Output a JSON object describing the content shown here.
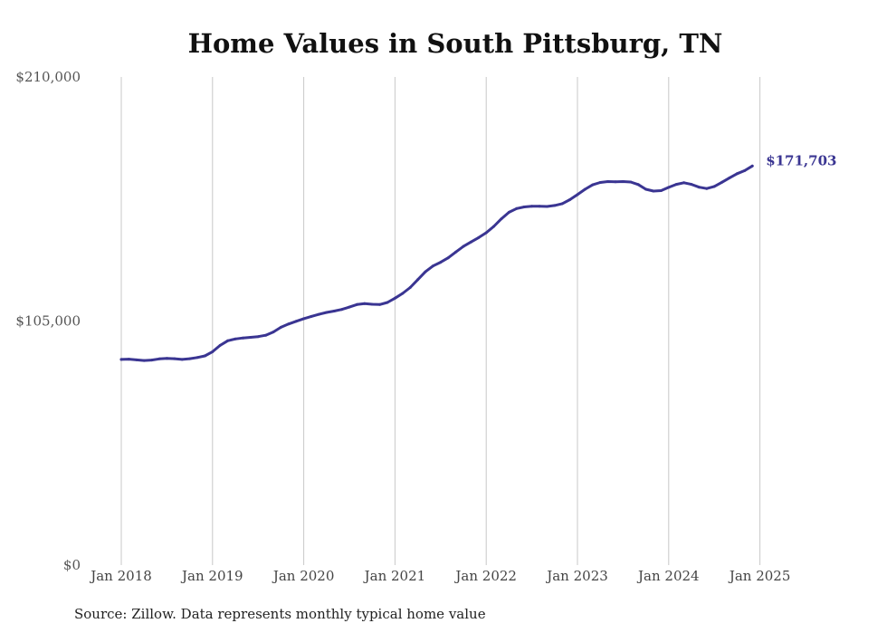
{
  "chart_data": {
    "type": "line",
    "title": "Home Values in South Pittsburg, TN",
    "xlabel": "",
    "ylabel": "",
    "ylim": [
      0,
      210000
    ],
    "y_ticks": [
      {
        "value": 0,
        "label": "$0"
      },
      {
        "value": 105000,
        "label": "$105,000"
      },
      {
        "value": 210000,
        "label": "$210,000"
      }
    ],
    "x_ticks": [
      {
        "value": 2018,
        "label": "Jan 2018"
      },
      {
        "value": 2019,
        "label": "Jan 2019"
      },
      {
        "value": 2020,
        "label": "Jan 2020"
      },
      {
        "value": 2021,
        "label": "Jan 2021"
      },
      {
        "value": 2022,
        "label": "Jan 2022"
      },
      {
        "value": 2023,
        "label": "Jan 2023"
      },
      {
        "value": 2024,
        "label": "Jan 2024"
      },
      {
        "value": 2025,
        "label": "Jan 2025"
      }
    ],
    "grid": "vertical",
    "series_color": "#3a3592",
    "end_label": "$171,703",
    "source": "Source: Zillow. Data represents monthly typical home value",
    "series": [
      {
        "name": "",
        "points": [
          [
            "2018-01",
            88500
          ],
          [
            "2018-02",
            88600
          ],
          [
            "2018-03",
            88300
          ],
          [
            "2018-04",
            88000
          ],
          [
            "2018-05",
            88200
          ],
          [
            "2018-06",
            88700
          ],
          [
            "2018-07",
            88900
          ],
          [
            "2018-08",
            88800
          ],
          [
            "2018-09",
            88500
          ],
          [
            "2018-10",
            88800
          ],
          [
            "2018-11",
            89300
          ],
          [
            "2018-12",
            90000
          ],
          [
            "2019-01",
            91800
          ],
          [
            "2019-02",
            94500
          ],
          [
            "2019-03",
            96500
          ],
          [
            "2019-04",
            97300
          ],
          [
            "2019-05",
            97700
          ],
          [
            "2019-06",
            98000
          ],
          [
            "2019-07",
            98300
          ],
          [
            "2019-08",
            98900
          ],
          [
            "2019-09",
            100300
          ],
          [
            "2019-10",
            102300
          ],
          [
            "2019-11",
            103700
          ],
          [
            "2019-12",
            104900
          ],
          [
            "2020-01",
            106000
          ],
          [
            "2020-02",
            107000
          ],
          [
            "2020-03",
            107900
          ],
          [
            "2020-04",
            108700
          ],
          [
            "2020-05",
            109300
          ],
          [
            "2020-06",
            110000
          ],
          [
            "2020-07",
            111000
          ],
          [
            "2020-08",
            112100
          ],
          [
            "2020-09",
            112500
          ],
          [
            "2020-10",
            112200
          ],
          [
            "2020-11",
            112100
          ],
          [
            "2020-12",
            113000
          ],
          [
            "2021-01",
            114800
          ],
          [
            "2021-02",
            116900
          ],
          [
            "2021-03",
            119400
          ],
          [
            "2021-04",
            122800
          ],
          [
            "2021-05",
            126200
          ],
          [
            "2021-06",
            128700
          ],
          [
            "2021-07",
            130300
          ],
          [
            "2021-08",
            132200
          ],
          [
            "2021-09",
            134700
          ],
          [
            "2021-10",
            137100
          ],
          [
            "2021-11",
            139000
          ],
          [
            "2021-12",
            140900
          ],
          [
            "2022-01",
            143000
          ],
          [
            "2022-02",
            145700
          ],
          [
            "2022-03",
            149000
          ],
          [
            "2022-04",
            151800
          ],
          [
            "2022-05",
            153400
          ],
          [
            "2022-06",
            154100
          ],
          [
            "2022-07",
            154400
          ],
          [
            "2022-08",
            154400
          ],
          [
            "2022-09",
            154300
          ],
          [
            "2022-10",
            154700
          ],
          [
            "2022-11",
            155500
          ],
          [
            "2022-12",
            157200
          ],
          [
            "2023-01",
            159400
          ],
          [
            "2023-02",
            161700
          ],
          [
            "2023-03",
            163600
          ],
          [
            "2023-04",
            164600
          ],
          [
            "2023-05",
            165000
          ],
          [
            "2023-06",
            164900
          ],
          [
            "2023-07",
            165000
          ],
          [
            "2023-08",
            164800
          ],
          [
            "2023-09",
            163700
          ],
          [
            "2023-10",
            161700
          ],
          [
            "2023-11",
            160900
          ],
          [
            "2023-12",
            161100
          ],
          [
            "2024-01",
            162500
          ],
          [
            "2024-02",
            163800
          ],
          [
            "2024-03",
            164500
          ],
          [
            "2024-04",
            163800
          ],
          [
            "2024-05",
            162600
          ],
          [
            "2024-06",
            162000
          ],
          [
            "2024-07",
            162900
          ],
          [
            "2024-08",
            164700
          ],
          [
            "2024-09",
            166600
          ],
          [
            "2024-10",
            168400
          ],
          [
            "2024-11",
            169700
          ],
          [
            "2024-12",
            171703
          ]
        ]
      }
    ]
  }
}
